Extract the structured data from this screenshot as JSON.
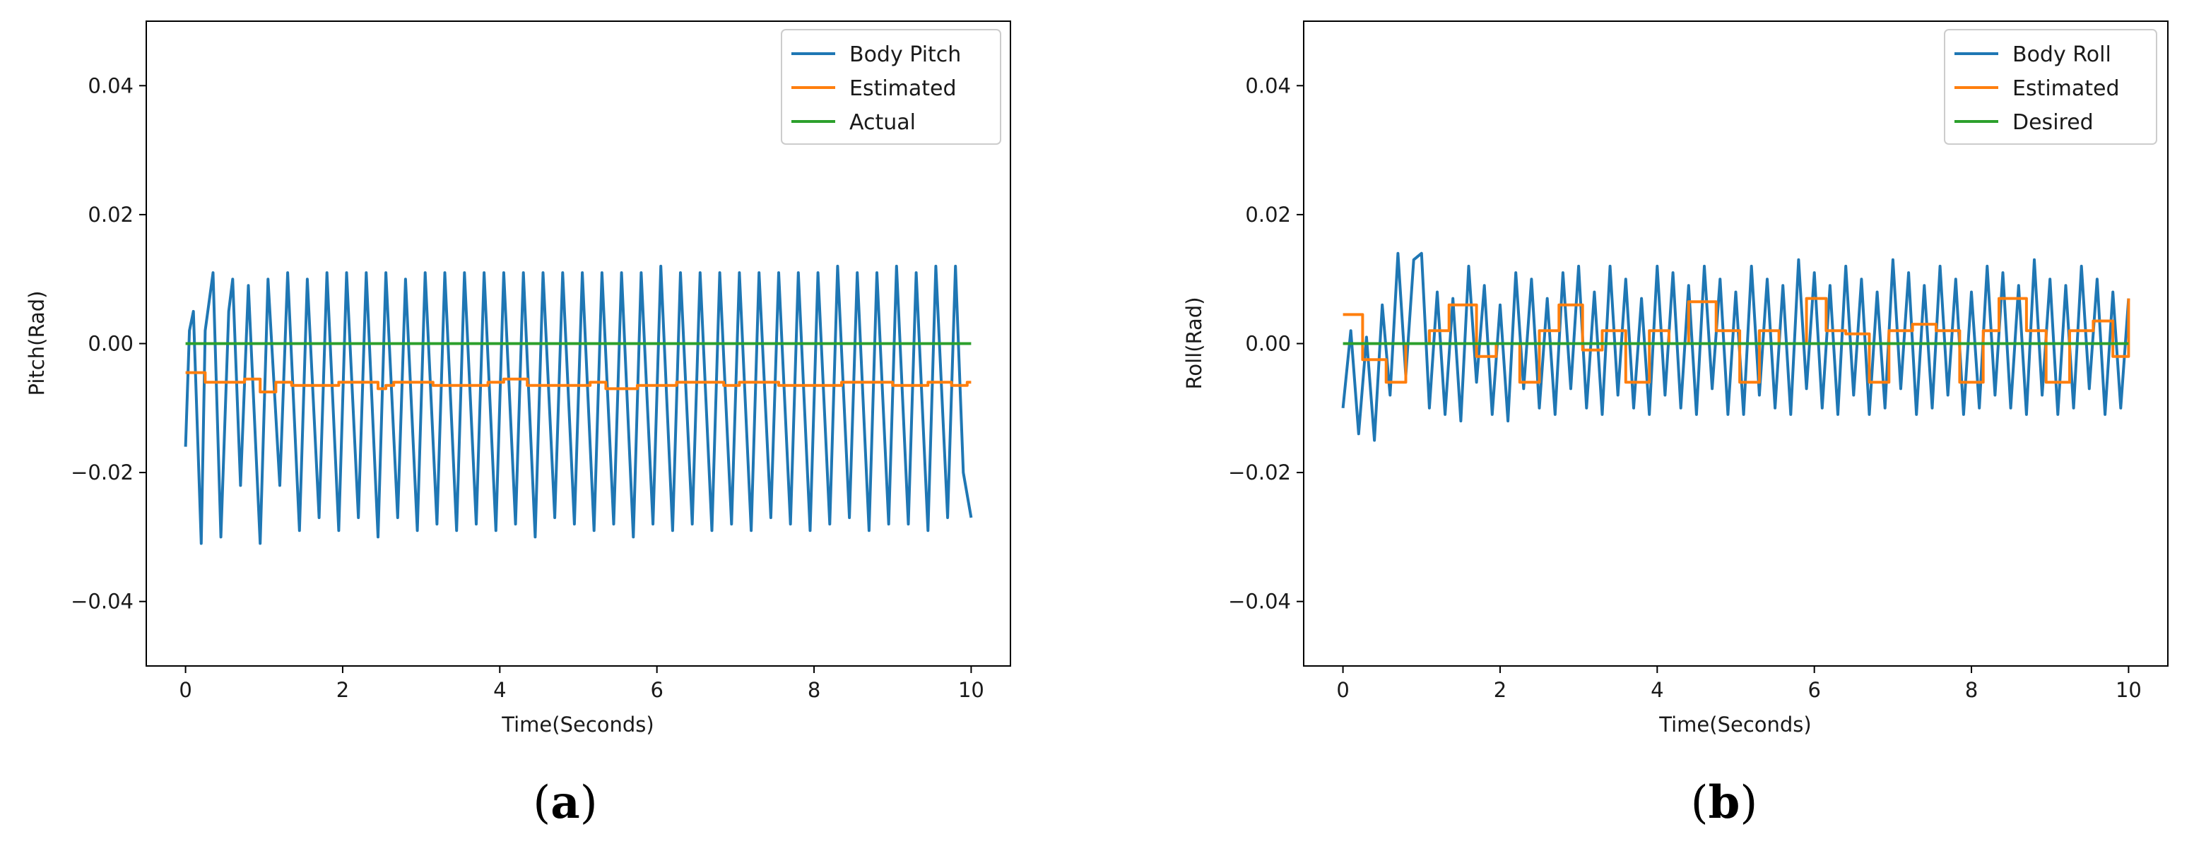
{
  "chart_data": [
    {
      "type": "line",
      "panel_label": "a",
      "xlabel": "Time(Seconds)",
      "ylabel": "Pitch(Rad)",
      "xlim": [
        -0.5,
        10.5
      ],
      "ylim": [
        -0.05,
        0.05
      ],
      "xticks": [
        0,
        2,
        4,
        6,
        8,
        10
      ],
      "xtick_labels": [
        "0",
        "2",
        "4",
        "6",
        "8",
        "10"
      ],
      "yticks": [
        0.04,
        0.02,
        0.0,
        -0.02,
        -0.04
      ],
      "ytick_labels": [
        "0.04",
        "0.02",
        "0.00",
        "−0.02",
        "−0.04"
      ],
      "legend_position": "top-right",
      "colors": {
        "series1": "#1f77b4",
        "series2": "#ff7f0e",
        "series3": "#2ca02c"
      },
      "series": [
        {
          "name": "Body Pitch",
          "description": "oscillation ~4 Hz, range about -0.030 to 0.012",
          "x": [
            0.0,
            0.05,
            0.1,
            0.2,
            0.25,
            0.35,
            0.45,
            0.55,
            0.6,
            0.7,
            0.8,
            0.95,
            1.05,
            1.2,
            1.3,
            1.45,
            1.55,
            1.7,
            1.8,
            1.95,
            2.05,
            2.2,
            2.3,
            2.45,
            2.55,
            2.7,
            2.8,
            2.95,
            3.05,
            3.2,
            3.3,
            3.45,
            3.55,
            3.7,
            3.8,
            3.95,
            4.05,
            4.2,
            4.3,
            4.45,
            4.55,
            4.7,
            4.8,
            4.95,
            5.05,
            5.2,
            5.3,
            5.45,
            5.55,
            5.7,
            5.8,
            5.95,
            6.05,
            6.2,
            6.3,
            6.45,
            6.55,
            6.7,
            6.8,
            6.95,
            7.05,
            7.2,
            7.3,
            7.45,
            7.55,
            7.7,
            7.8,
            7.95,
            8.05,
            8.2,
            8.3,
            8.45,
            8.55,
            8.7,
            8.8,
            8.95,
            9.05,
            9.2,
            9.3,
            9.45,
            9.55,
            9.7,
            9.8,
            9.9,
            10.0
          ],
          "values": [
            -0.016,
            0.002,
            0.005,
            -0.031,
            0.002,
            0.011,
            -0.03,
            0.005,
            0.01,
            -0.022,
            0.009,
            -0.031,
            0.01,
            -0.022,
            0.011,
            -0.029,
            0.01,
            -0.027,
            0.011,
            -0.029,
            0.011,
            -0.027,
            0.011,
            -0.03,
            0.011,
            -0.027,
            0.01,
            -0.029,
            0.011,
            -0.028,
            0.011,
            -0.029,
            0.011,
            -0.028,
            0.011,
            -0.029,
            0.011,
            -0.028,
            0.011,
            -0.03,
            0.011,
            -0.027,
            0.011,
            -0.028,
            0.011,
            -0.029,
            0.011,
            -0.028,
            0.011,
            -0.03,
            0.011,
            -0.028,
            0.012,
            -0.029,
            0.011,
            -0.028,
            0.011,
            -0.029,
            0.011,
            -0.028,
            0.011,
            -0.029,
            0.011,
            -0.027,
            0.011,
            -0.028,
            0.011,
            -0.029,
            0.011,
            -0.028,
            0.012,
            -0.027,
            0.011,
            -0.029,
            0.011,
            -0.028,
            0.012,
            -0.028,
            0.011,
            -0.029,
            0.012,
            -0.027,
            0.012,
            -0.02,
            -0.027
          ]
        },
        {
          "name": "Estimated",
          "step": true,
          "x": [
            0.0,
            0.25,
            0.45,
            0.75,
            0.95,
            1.15,
            1.35,
            1.8,
            1.95,
            2.15,
            2.45,
            2.55,
            2.65,
            3.15,
            3.35,
            3.85,
            4.05,
            4.35,
            4.65,
            5.15,
            5.35,
            5.75,
            6.0,
            6.25,
            6.85,
            7.05,
            7.35,
            7.55,
            8.15,
            8.35,
            8.75,
            9.0,
            9.45,
            9.75,
            9.95,
            10.0
          ],
          "values": [
            -0.0045,
            -0.006,
            -0.006,
            -0.0055,
            -0.0075,
            -0.006,
            -0.0065,
            -0.0065,
            -0.006,
            -0.006,
            -0.007,
            -0.0065,
            -0.006,
            -0.0065,
            -0.0065,
            -0.006,
            -0.0055,
            -0.0065,
            -0.0065,
            -0.006,
            -0.007,
            -0.0065,
            -0.0065,
            -0.006,
            -0.0065,
            -0.006,
            -0.006,
            -0.0065,
            -0.0065,
            -0.006,
            -0.006,
            -0.0065,
            -0.006,
            -0.0065,
            -0.006,
            -0.006
          ]
        },
        {
          "name": "Actual",
          "x": [
            0,
            10
          ],
          "values": [
            0.0,
            0.0
          ]
        }
      ]
    },
    {
      "type": "line",
      "panel_label": "b",
      "xlabel": "Time(Seconds)",
      "ylabel": "Roll(Rad)",
      "xlim": [
        -0.5,
        10.5
      ],
      "ylim": [
        -0.05,
        0.05
      ],
      "xticks": [
        0,
        2,
        4,
        6,
        8,
        10
      ],
      "xtick_labels": [
        "0",
        "2",
        "4",
        "6",
        "8",
        "10"
      ],
      "yticks": [
        0.04,
        0.02,
        0.0,
        -0.02,
        -0.04
      ],
      "ytick_labels": [
        "0.04",
        "0.02",
        "0.00",
        "−0.02",
        "−0.04"
      ],
      "legend_position": "top-right",
      "colors": {
        "series1": "#1f77b4",
        "series2": "#ff7f0e",
        "series3": "#2ca02c"
      },
      "series": [
        {
          "name": "Body Roll",
          "description": "oscillation with beat pattern, range about -0.015 to 0.014",
          "x": [
            0.0,
            0.1,
            0.2,
            0.3,
            0.4,
            0.5,
            0.6,
            0.7,
            0.8,
            0.9,
            1.0,
            1.1,
            1.2,
            1.3,
            1.4,
            1.5,
            1.6,
            1.7,
            1.8,
            1.9,
            2.0,
            2.1,
            2.2,
            2.3,
            2.4,
            2.5,
            2.6,
            2.7,
            2.8,
            2.9,
            3.0,
            3.1,
            3.2,
            3.3,
            3.4,
            3.5,
            3.6,
            3.7,
            3.8,
            3.9,
            4.0,
            4.1,
            4.2,
            4.3,
            4.4,
            4.5,
            4.6,
            4.7,
            4.8,
            4.9,
            5.0,
            5.1,
            5.2,
            5.3,
            5.4,
            5.5,
            5.6,
            5.7,
            5.8,
            5.9,
            6.0,
            6.1,
            6.2,
            6.3,
            6.4,
            6.5,
            6.6,
            6.7,
            6.8,
            6.9,
            7.0,
            7.1,
            7.2,
            7.3,
            7.4,
            7.5,
            7.6,
            7.7,
            7.8,
            7.9,
            8.0,
            8.1,
            8.2,
            8.3,
            8.4,
            8.5,
            8.6,
            8.7,
            8.8,
            8.9,
            9.0,
            9.1,
            9.2,
            9.3,
            9.4,
            9.5,
            9.6,
            9.7,
            9.8,
            9.9,
            10.0
          ],
          "values": [
            -0.01,
            0.002,
            -0.014,
            0.001,
            -0.015,
            0.006,
            -0.008,
            0.014,
            -0.005,
            0.013,
            0.014,
            -0.01,
            0.008,
            -0.011,
            0.007,
            -0.012,
            0.012,
            -0.006,
            0.009,
            -0.011,
            0.006,
            -0.012,
            0.011,
            -0.007,
            0.01,
            -0.01,
            0.007,
            -0.011,
            0.011,
            -0.007,
            0.012,
            -0.01,
            0.008,
            -0.011,
            0.012,
            -0.008,
            0.01,
            -0.01,
            0.007,
            -0.011,
            0.012,
            -0.008,
            0.011,
            -0.01,
            0.009,
            -0.011,
            0.012,
            -0.007,
            0.01,
            -0.011,
            0.008,
            -0.011,
            0.012,
            -0.008,
            0.01,
            -0.01,
            0.009,
            -0.011,
            0.013,
            -0.007,
            0.011,
            -0.01,
            0.009,
            -0.011,
            0.012,
            -0.008,
            0.01,
            -0.011,
            0.008,
            -0.01,
            0.013,
            -0.007,
            0.011,
            -0.011,
            0.009,
            -0.01,
            0.012,
            -0.008,
            0.01,
            -0.011,
            0.008,
            -0.01,
            0.012,
            -0.008,
            0.011,
            -0.01,
            0.009,
            -0.011,
            0.013,
            -0.008,
            0.01,
            -0.011,
            0.009,
            -0.01,
            0.012,
            -0.007,
            0.01,
            -0.011,
            0.008,
            -0.01,
            0.007
          ]
        },
        {
          "name": "Estimated",
          "step": true,
          "x": [
            0.0,
            0.25,
            0.45,
            0.55,
            0.8,
            1.1,
            1.35,
            1.7,
            1.95,
            2.25,
            2.5,
            2.75,
            3.05,
            3.3,
            3.6,
            3.9,
            4.15,
            4.4,
            4.75,
            5.05,
            5.3,
            5.55,
            5.9,
            6.15,
            6.4,
            6.7,
            6.95,
            7.25,
            7.55,
            7.85,
            8.15,
            8.35,
            8.7,
            8.95,
            9.25,
            9.55,
            9.8,
            10.0
          ],
          "values": [
            0.0045,
            -0.0025,
            -0.0025,
            -0.006,
            0.0,
            0.002,
            0.006,
            -0.002,
            0.0,
            -0.006,
            0.002,
            0.006,
            -0.001,
            0.002,
            -0.006,
            0.002,
            0.0,
            0.0065,
            0.002,
            -0.006,
            0.002,
            0.0,
            0.007,
            0.002,
            0.0015,
            -0.006,
            0.002,
            0.003,
            0.002,
            -0.006,
            0.002,
            0.007,
            0.002,
            -0.006,
            0.002,
            0.0035,
            -0.002,
            0.007
          ]
        },
        {
          "name": "Desired",
          "x": [
            0,
            10
          ],
          "values": [
            0.0,
            0.0
          ]
        }
      ]
    }
  ]
}
